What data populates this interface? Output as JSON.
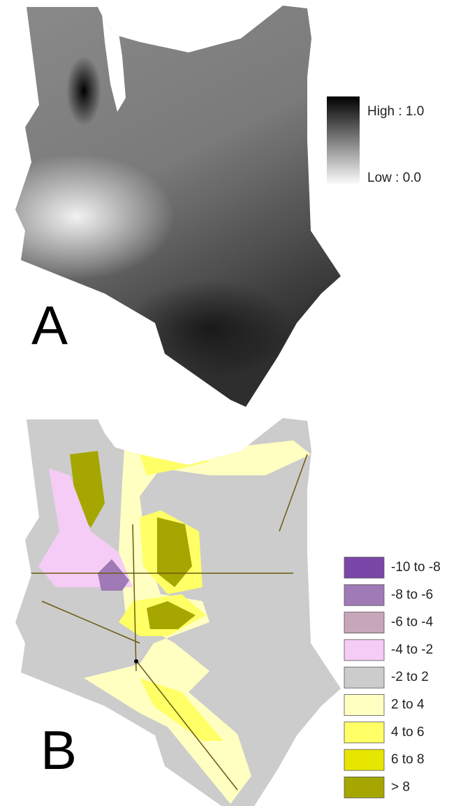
{
  "panel_a": {
    "label": "A",
    "legend": {
      "high": "High : 1.0",
      "low": "Low : 0.0"
    }
  },
  "panel_b": {
    "label": "B",
    "legend": [
      {
        "label": "-10 to -8",
        "color": "#7a46a8"
      },
      {
        "label": "-8 to -6",
        "color": "#a07ab6"
      },
      {
        "label": "-6 to -4",
        "color": "#c6a6b8"
      },
      {
        "label": "-4 to -2",
        "color": "#f4ccf6"
      },
      {
        "label": "-2 to 2",
        "color": "#cccccc"
      },
      {
        "label": "2 to 4",
        "color": "#ffffc2"
      },
      {
        "label": "4 to 6",
        "color": "#ffff66"
      },
      {
        "label": "6 to 8",
        "color": "#e6e600"
      },
      {
        "label": "> 8",
        "color": "#a6a600"
      }
    ]
  }
}
